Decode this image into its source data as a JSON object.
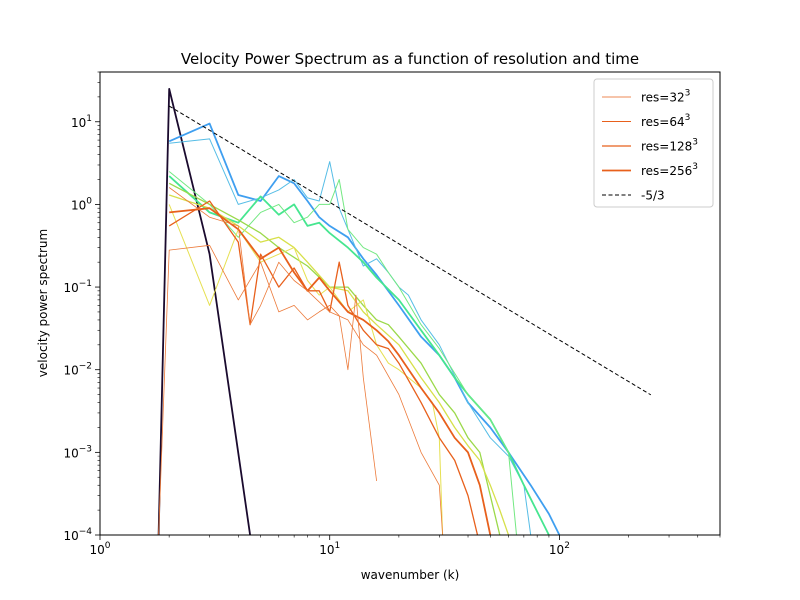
{
  "chart_data": {
    "type": "line",
    "title": "Velocity Power Spectrum as a function of resolution and time",
    "xlabel": "wavenumber (k)",
    "ylabel": "velocity power spectrum",
    "xscale": "log",
    "yscale": "log",
    "xlim": [
      1,
      500
    ],
    "ylim": [
      0.0001,
      40
    ],
    "x_ticks": [
      {
        "base": "10",
        "exp": "0"
      },
      {
        "base": "10",
        "exp": "1"
      },
      {
        "base": "10",
        "exp": "2"
      }
    ],
    "y_ticks": [
      {
        "base": "10",
        "exp": "−4"
      },
      {
        "base": "10",
        "exp": "−3"
      },
      {
        "base": "10",
        "exp": "−2"
      },
      {
        "base": "10",
        "exp": "−1"
      },
      {
        "base": "10",
        "exp": "0"
      },
      {
        "base": "10",
        "exp": "1"
      }
    ],
    "grid": false,
    "legend_position": "top-right",
    "legend": [
      {
        "label": "res=32",
        "sup": "3",
        "color": "#e8601c",
        "style": "solid",
        "width": 0.8
      },
      {
        "label": "res=64",
        "sup": "3",
        "color": "#e8601c",
        "style": "solid",
        "width": 1.0
      },
      {
        "label": "res=128",
        "sup": "3",
        "color": "#e8601c",
        "style": "solid",
        "width": 1.3
      },
      {
        "label": "res=256",
        "sup": "3",
        "color": "#e8601c",
        "style": "solid",
        "width": 1.8
      },
      {
        "label": "-5/3",
        "sup": "",
        "color": "#000000",
        "style": "dashed",
        "width": 1.0
      }
    ],
    "series": [
      {
        "color": "#1a0a2e",
        "width": 1.8,
        "points": [
          [
            1.8,
            0.0001
          ],
          [
            2.0,
            25
          ],
          [
            3.0,
            0.25
          ],
          [
            4.5,
            0.0001
          ]
        ]
      },
      {
        "color": "#3f9ff0",
        "width": 1.8,
        "points": [
          [
            2,
            5.8
          ],
          [
            3,
            9.5
          ],
          [
            4,
            1.3
          ],
          [
            5,
            1.1
          ],
          [
            6,
            2.2
          ],
          [
            7,
            1.8
          ],
          [
            8,
            1.1
          ],
          [
            9,
            0.7
          ],
          [
            10,
            0.55
          ],
          [
            12,
            0.4
          ],
          [
            14,
            0.22
          ],
          [
            16,
            0.14
          ],
          [
            20,
            0.06
          ],
          [
            25,
            0.025
          ],
          [
            30,
            0.015
          ],
          [
            35,
            0.008
          ],
          [
            40,
            0.004
          ],
          [
            50,
            0.002
          ],
          [
            60,
            0.001
          ],
          [
            75,
            0.0004
          ],
          [
            90,
            0.00018
          ],
          [
            100,
            0.0001
          ]
        ]
      },
      {
        "color": "#56bde6",
        "width": 1.0,
        "points": [
          [
            2,
            5.5
          ],
          [
            3,
            6.2
          ],
          [
            4,
            1.0
          ],
          [
            5,
            1.2
          ],
          [
            6,
            1.5
          ],
          [
            7,
            2.0
          ],
          [
            8,
            1.2
          ],
          [
            9,
            1.1
          ],
          [
            10,
            3.3
          ],
          [
            11,
            0.9
          ],
          [
            12,
            0.5
          ],
          [
            14,
            0.18
          ],
          [
            16,
            0.22
          ],
          [
            18,
            0.15
          ],
          [
            20,
            0.1
          ],
          [
            22,
            0.08
          ],
          [
            25,
            0.04
          ],
          [
            30,
            0.02
          ],
          [
            40,
            0.004
          ],
          [
            50,
            0.0015
          ],
          [
            60,
            0.0009
          ],
          [
            70,
            0.0004
          ],
          [
            75,
            0.0001
          ]
        ]
      },
      {
        "color": "#46e690",
        "width": 1.8,
        "points": [
          [
            2,
            2.2
          ],
          [
            3,
            0.8
          ],
          [
            4,
            0.6
          ],
          [
            5,
            1.25
          ],
          [
            6,
            0.75
          ],
          [
            7,
            1.0
          ],
          [
            8,
            0.55
          ],
          [
            9,
            0.6
          ],
          [
            10,
            0.45
          ],
          [
            12,
            0.3
          ],
          [
            14,
            0.2
          ],
          [
            16,
            0.13
          ],
          [
            20,
            0.07
          ],
          [
            25,
            0.03
          ],
          [
            30,
            0.015
          ],
          [
            35,
            0.008
          ],
          [
            40,
            0.005
          ],
          [
            50,
            0.0025
          ],
          [
            60,
            0.001
          ],
          [
            70,
            0.0004
          ],
          [
            90,
            0.0001
          ]
        ]
      },
      {
        "color": "#73e882",
        "width": 1.0,
        "points": [
          [
            2,
            2.5
          ],
          [
            3,
            1.0
          ],
          [
            4,
            0.4
          ],
          [
            5,
            0.8
          ],
          [
            6,
            1.0
          ],
          [
            7,
            0.6
          ],
          [
            8,
            0.7
          ],
          [
            9,
            1.0
          ],
          [
            10,
            1.0
          ],
          [
            11,
            2.0
          ],
          [
            12,
            0.5
          ],
          [
            14,
            0.3
          ],
          [
            16,
            0.25
          ],
          [
            18,
            0.15
          ],
          [
            20,
            0.1
          ],
          [
            25,
            0.035
          ],
          [
            30,
            0.018
          ],
          [
            40,
            0.005
          ],
          [
            50,
            0.0025
          ],
          [
            60,
            0.001
          ],
          [
            65,
            0.0001
          ]
        ]
      },
      {
        "color": "#9bd94a",
        "width": 1.3,
        "points": [
          [
            2,
            1.8
          ],
          [
            3,
            1.0
          ],
          [
            4,
            0.65
          ],
          [
            5,
            0.45
          ],
          [
            6,
            0.3
          ],
          [
            8,
            0.18
          ],
          [
            10,
            0.1
          ],
          [
            12,
            0.1
          ],
          [
            14,
            0.06
          ],
          [
            16,
            0.04
          ],
          [
            18,
            0.035
          ],
          [
            20,
            0.025
          ],
          [
            25,
            0.012
          ],
          [
            30,
            0.005
          ],
          [
            35,
            0.003
          ],
          [
            40,
            0.0015
          ],
          [
            45,
            0.001
          ],
          [
            50,
            0.0003
          ],
          [
            55,
            0.0001
          ]
        ]
      },
      {
        "color": "#d7e04a",
        "width": 1.3,
        "points": [
          [
            2,
            1.3
          ],
          [
            3,
            0.9
          ],
          [
            4,
            0.55
          ],
          [
            5,
            0.35
          ],
          [
            6,
            0.4
          ],
          [
            7,
            0.3
          ],
          [
            8,
            0.2
          ],
          [
            10,
            0.1
          ],
          [
            12,
            0.09
          ],
          [
            14,
            0.05
          ],
          [
            16,
            0.035
          ],
          [
            20,
            0.02
          ],
          [
            25,
            0.008
          ],
          [
            30,
            0.004
          ],
          [
            35,
            0.002
          ],
          [
            40,
            0.0012
          ],
          [
            45,
            0.0008
          ],
          [
            50,
            0.0004
          ],
          [
            55,
            0.0002
          ],
          [
            60,
            0.0001
          ]
        ]
      },
      {
        "color": "#e6e052",
        "width": 1.0,
        "points": [
          [
            2,
            1.0
          ],
          [
            3,
            0.06
          ],
          [
            4,
            0.5
          ],
          [
            5,
            0.2
          ],
          [
            6,
            0.25
          ],
          [
            7,
            0.3
          ],
          [
            8,
            0.12
          ],
          [
            9,
            0.08
          ],
          [
            10,
            0.1
          ],
          [
            12,
            0.05
          ],
          [
            14,
            0.07
          ],
          [
            16,
            0.02
          ],
          [
            18,
            0.012
          ],
          [
            20,
            0.01
          ],
          [
            25,
            0.006
          ],
          [
            28,
            0.004
          ],
          [
            30,
            0.0015
          ],
          [
            31,
            0.0001
          ]
        ]
      },
      {
        "color": "#e8601c",
        "width": 1.8,
        "points": [
          [
            2,
            0.8
          ],
          [
            3,
            0.9
          ],
          [
            4,
            0.5
          ],
          [
            5,
            0.22
          ],
          [
            6,
            0.3
          ],
          [
            7,
            0.15
          ],
          [
            8,
            0.09
          ],
          [
            9,
            0.13
          ],
          [
            10,
            0.09
          ],
          [
            12,
            0.05
          ],
          [
            14,
            0.04
          ],
          [
            16,
            0.03
          ],
          [
            18,
            0.022
          ],
          [
            20,
            0.015
          ],
          [
            25,
            0.006
          ],
          [
            30,
            0.003
          ],
          [
            35,
            0.0015
          ],
          [
            40,
            0.001
          ],
          [
            45,
            0.0004
          ],
          [
            50,
            0.0001
          ]
        ]
      },
      {
        "color": "#e8601c",
        "width": 1.3,
        "points": [
          [
            2,
            0.55
          ],
          [
            3,
            1.1
          ],
          [
            4,
            0.35
          ],
          [
            4.5,
            0.035
          ],
          [
            5,
            0.25
          ],
          [
            6,
            0.1
          ],
          [
            7,
            0.17
          ],
          [
            8,
            0.09
          ],
          [
            9,
            0.09
          ],
          [
            10,
            0.05
          ],
          [
            11,
            0.2
          ],
          [
            12,
            0.06
          ],
          [
            14,
            0.03
          ],
          [
            16,
            0.02
          ],
          [
            18,
            0.018
          ],
          [
            20,
            0.012
          ],
          [
            25,
            0.004
          ],
          [
            30,
            0.0015
          ],
          [
            35,
            0.0008
          ],
          [
            40,
            0.0003
          ],
          [
            44,
            0.0001
          ]
        ]
      },
      {
        "color": "#ec7a3a",
        "width": 0.8,
        "points": [
          [
            1.8,
            0.0001
          ],
          [
            2,
            0.28
          ],
          [
            3,
            0.32
          ],
          [
            4,
            0.07
          ],
          [
            5,
            0.2
          ],
          [
            6,
            0.05
          ],
          [
            7,
            0.06
          ],
          [
            8,
            0.04
          ],
          [
            9,
            0.05
          ],
          [
            10,
            0.06
          ],
          [
            11,
            0.045
          ],
          [
            12,
            0.01
          ],
          [
            13,
            0.08
          ],
          [
            14,
            0.008
          ],
          [
            16,
            0.00045
          ]
        ]
      },
      {
        "color": "#ec7a3a",
        "width": 0.8,
        "points": [
          [
            2,
            1.6
          ],
          [
            3,
            0.7
          ],
          [
            4,
            0.55
          ],
          [
            4.5,
            0.035
          ],
          [
            5,
            0.06
          ],
          [
            6,
            0.2
          ],
          [
            7,
            0.12
          ],
          [
            8,
            0.09
          ],
          [
            10,
            0.05
          ],
          [
            12,
            0.04
          ],
          [
            14,
            0.02
          ],
          [
            16,
            0.015
          ],
          [
            20,
            0.005
          ],
          [
            25,
            0.001
          ],
          [
            30,
            0.0004
          ],
          [
            31,
            0.0001
          ]
        ]
      }
    ],
    "reference_line": {
      "label": "-5/3",
      "k0": 2,
      "E0": 15.5,
      "k1": 250,
      "slope": -1.6667
    }
  }
}
